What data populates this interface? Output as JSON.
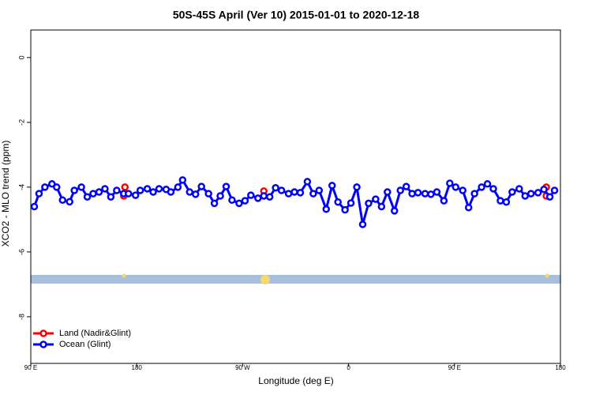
{
  "chart_data": {
    "type": "line",
    "title": "50S-45S April (Ver 10)   2015-01-01 to 2020-12-18",
    "x_label": "Longitude (deg E)",
    "y_label": "XCO2 - MLO trend (ppm)",
    "xlim": [
      90,
      540
    ],
    "ylim": [
      -9.44,
      0.85
    ],
    "xticks": [
      {
        "value": 90,
        "label": "90 E"
      },
      {
        "value": 180,
        "label": "180"
      },
      {
        "value": 270,
        "label": "90 W"
      },
      {
        "value": 360,
        "label": "0"
      },
      {
        "value": 450,
        "label": "90 E"
      },
      {
        "value": 540,
        "label": "180"
      }
    ],
    "yticks": [
      0,
      -2,
      -4,
      -6,
      -8
    ],
    "legend": "bottom-left",
    "series": [
      {
        "name": "Land (Nadir&Glint)",
        "color": "#ff0000",
        "x": [
          169,
          170,
          288,
          528,
          528
        ],
        "values": [
          -4.27,
          -4.0,
          -4.12,
          -4.27,
          -4.0
        ]
      },
      {
        "name": "Ocean (Glint)",
        "color": "#0000ff",
        "x": [
          93,
          97,
          102,
          108,
          112,
          117,
          123,
          127,
          133,
          138,
          143,
          148,
          153,
          158,
          163,
          169,
          173,
          179,
          183,
          189,
          194,
          199,
          205,
          209,
          215,
          219,
          225,
          230,
          235,
          241,
          246,
          251,
          256,
          261,
          267,
          272,
          277,
          283,
          288,
          293,
          298,
          303,
          309,
          314,
          319,
          325,
          330,
          335,
          341,
          346,
          351,
          357,
          362,
          367,
          372,
          377,
          383,
          388,
          393,
          399,
          404,
          409,
          414,
          419,
          425,
          430,
          435,
          441,
          446,
          451,
          457,
          462,
          467,
          473,
          478,
          483,
          489,
          494,
          499,
          505,
          510,
          515,
          521,
          526,
          531,
          535
        ],
        "values": [
          -4.6,
          -4.2,
          -4.0,
          -3.9,
          -4.0,
          -4.4,
          -4.45,
          -4.1,
          -4.0,
          -4.3,
          -4.2,
          -4.15,
          -4.05,
          -4.3,
          -4.1,
          -4.2,
          -4.2,
          -4.25,
          -4.1,
          -4.05,
          -4.15,
          -4.05,
          -4.07,
          -4.15,
          -4.0,
          -3.78,
          -4.15,
          -4.22,
          -3.98,
          -4.2,
          -4.5,
          -4.27,
          -3.98,
          -4.4,
          -4.5,
          -4.42,
          -4.25,
          -4.34,
          -4.27,
          -4.3,
          -4.02,
          -4.1,
          -4.2,
          -4.15,
          -4.17,
          -3.83,
          -4.2,
          -4.1,
          -4.68,
          -3.95,
          -4.46,
          -4.7,
          -4.49,
          -4.0,
          -5.15,
          -4.5,
          -4.37,
          -4.6,
          -4.15,
          -4.73,
          -4.1,
          -3.98,
          -4.2,
          -4.17,
          -4.2,
          -4.22,
          -4.15,
          -4.42,
          -3.88,
          -4.0,
          -4.1,
          -4.63,
          -4.2,
          -4.0,
          -3.9,
          -4.05,
          -4.42,
          -4.46,
          -4.15,
          -4.05,
          -4.27,
          -4.2,
          -4.17,
          -4.07,
          -4.3,
          -4.1
        ]
      }
    ]
  }
}
